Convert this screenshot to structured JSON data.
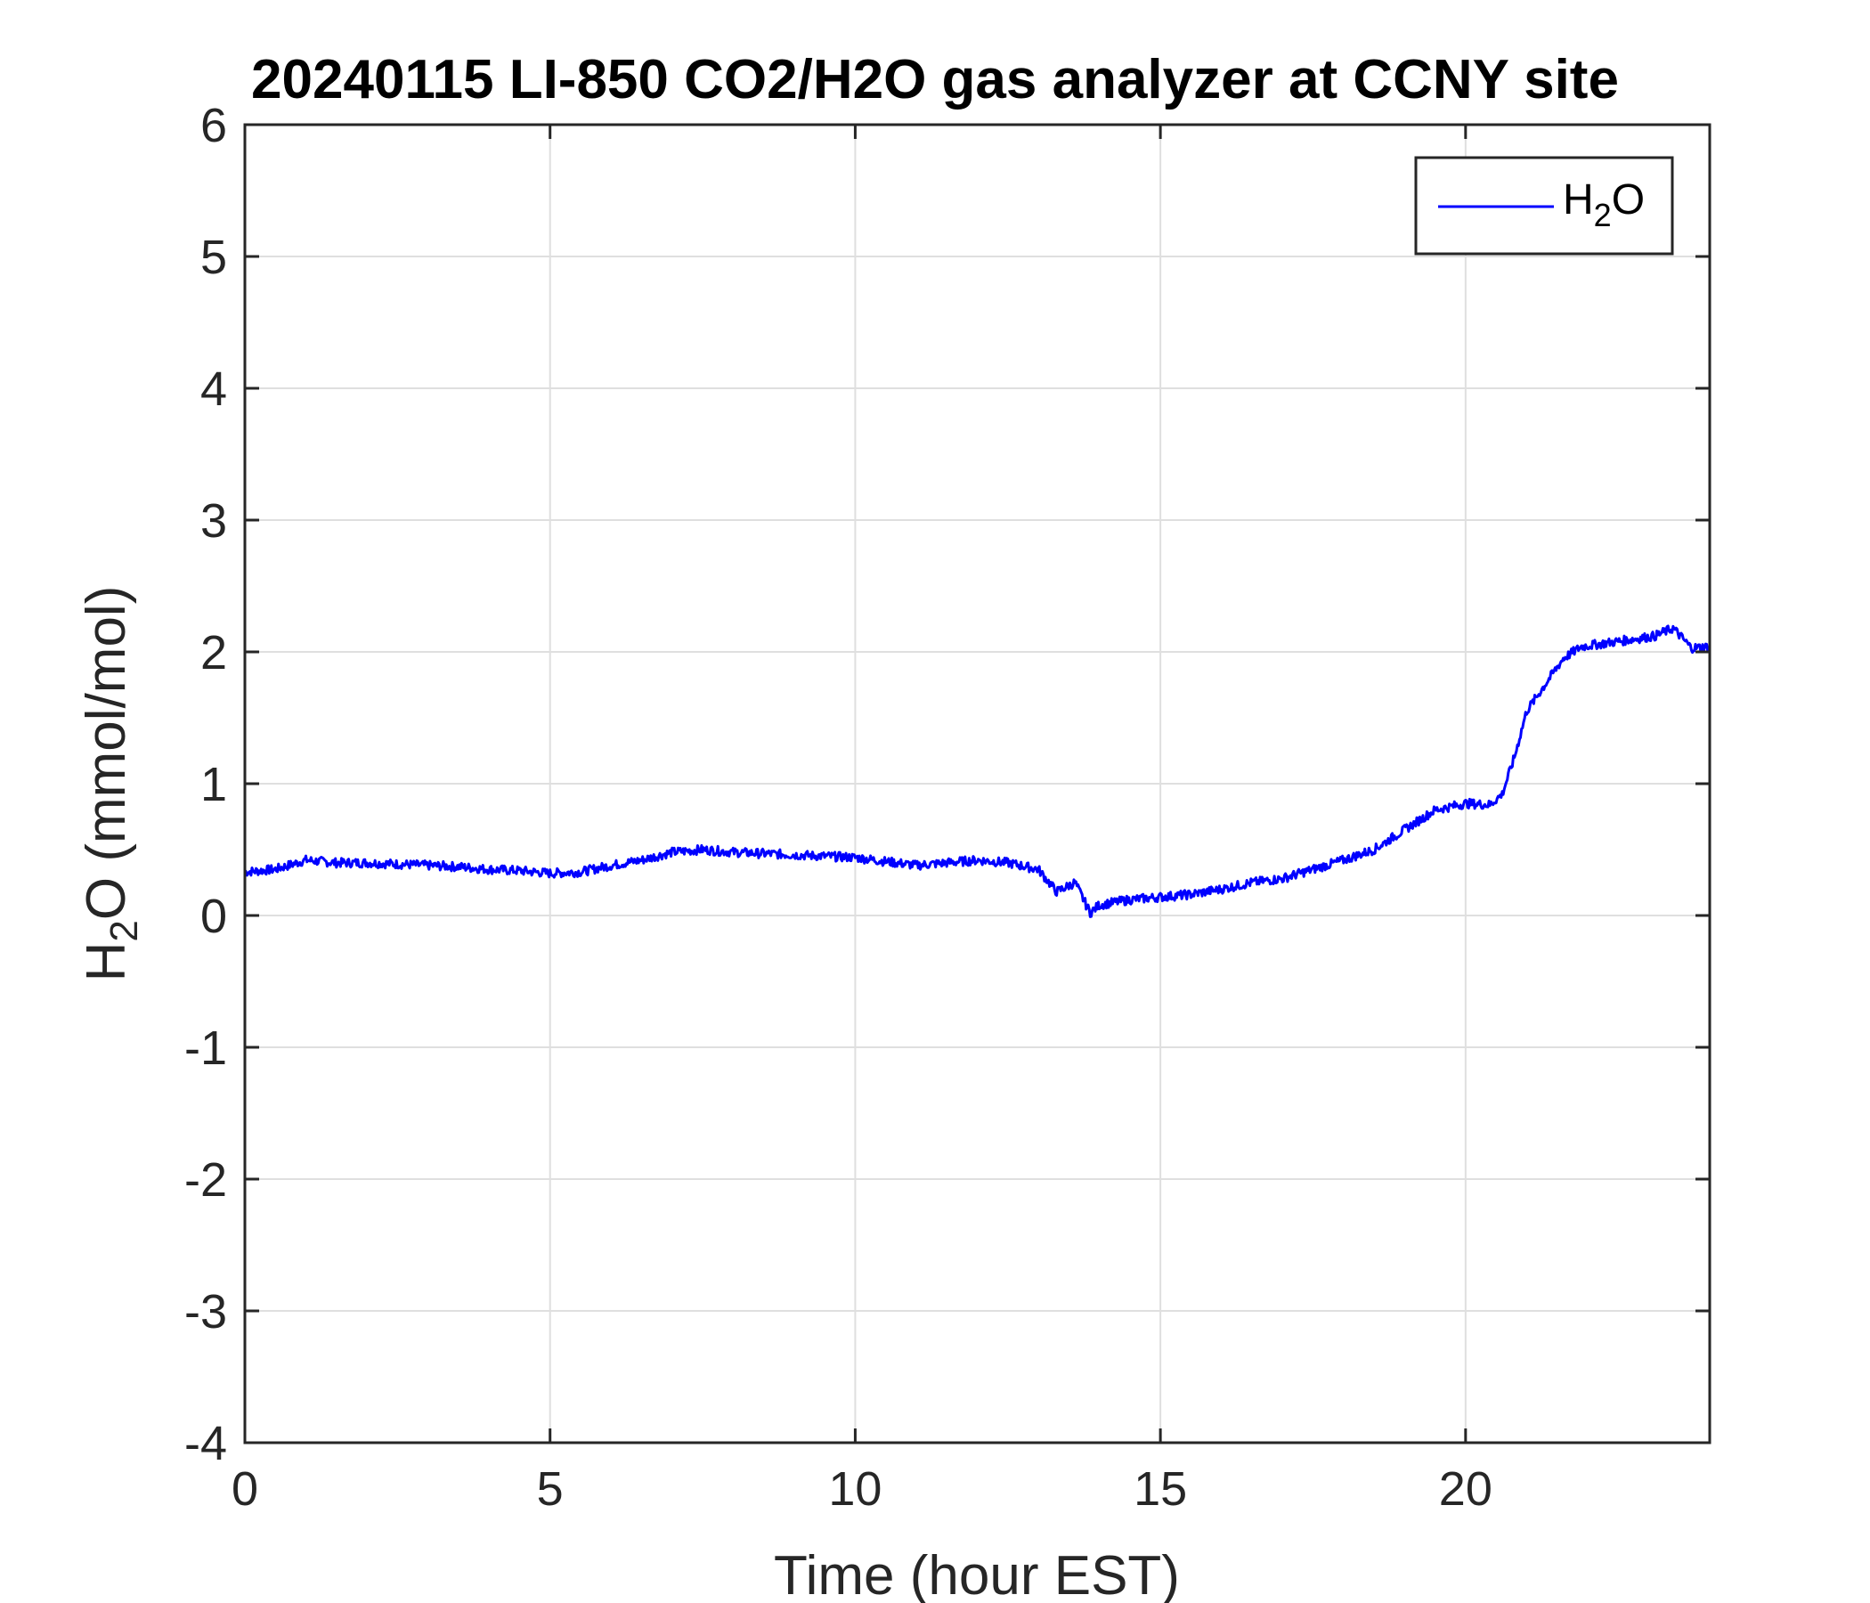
{
  "chart_data": {
    "type": "line",
    "title": "20240115 LI-850 CO2/H2O gas analyzer at CCNY site",
    "xlabel": "Time (hour EST)",
    "ylabel": {
      "prefix": "H",
      "sub": "2",
      "suffix": "O (mmol/mol)"
    },
    "xlim": [
      0,
      24
    ],
    "ylim": [
      -4,
      6
    ],
    "xticks": [
      0,
      5,
      10,
      15,
      20
    ],
    "yticks": [
      -4,
      -3,
      -2,
      -1,
      0,
      1,
      2,
      3,
      4,
      5,
      6
    ],
    "grid": true,
    "legend": {
      "position": "top-right",
      "label": {
        "prefix": "H",
        "sub": "2",
        "suffix": "O"
      }
    },
    "series": [
      {
        "name": "H2O",
        "color": "#0000ff",
        "x": [
          0,
          0.5,
          1,
          1.5,
          2,
          2.5,
          3,
          3.5,
          4,
          4.5,
          5,
          5.5,
          6,
          6.5,
          7,
          7.5,
          8,
          8.5,
          9,
          9.5,
          10,
          10.5,
          11,
          11.5,
          12,
          12.5,
          13,
          13.3,
          13.6,
          13.85,
          14,
          14.5,
          15,
          15.5,
          16,
          16.5,
          17,
          17.5,
          18,
          18.5,
          19,
          19.5,
          20,
          20.4,
          20.6,
          20.8,
          21,
          21.3,
          21.6,
          21.9,
          22.2,
          22.5,
          22.8,
          23.1,
          23.4,
          23.7,
          24
        ],
        "y": [
          0.33,
          0.35,
          0.42,
          0.4,
          0.4,
          0.39,
          0.38,
          0.37,
          0.35,
          0.34,
          0.32,
          0.33,
          0.38,
          0.42,
          0.48,
          0.5,
          0.48,
          0.47,
          0.46,
          0.45,
          0.44,
          0.41,
          0.38,
          0.4,
          0.42,
          0.4,
          0.35,
          0.18,
          0.25,
          0.02,
          0.08,
          0.12,
          0.14,
          0.16,
          0.2,
          0.25,
          0.28,
          0.35,
          0.42,
          0.5,
          0.65,
          0.8,
          0.85,
          0.84,
          0.92,
          1.2,
          1.55,
          1.75,
          1.95,
          2.04,
          2.06,
          2.08,
          2.1,
          2.12,
          2.18,
          2.03,
          2.04
        ]
      }
    ]
  }
}
